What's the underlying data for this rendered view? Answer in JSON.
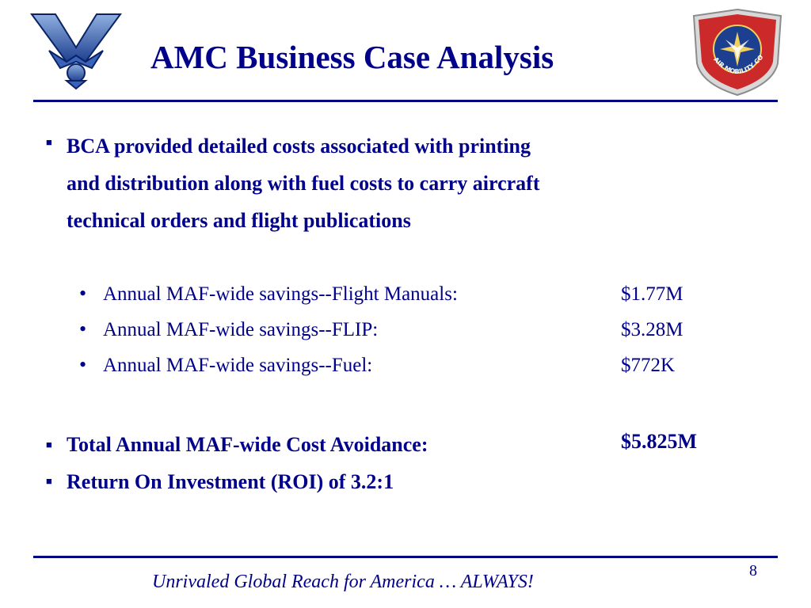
{
  "slide": {
    "title": "AMC Business Case Analysis",
    "main_bullet": {
      "lines": [
        "BCA provided detailed costs associated with printing",
        "and distribution along with fuel costs to carry aircraft",
        "technical orders and flight publications"
      ]
    },
    "savings": [
      {
        "label": "Annual MAF-wide savings--Flight Manuals:",
        "value": "$1.77M"
      },
      {
        "label": "Annual MAF-wide savings--FLIP:",
        "value": "$3.28M"
      },
      {
        "label": "Annual MAF-wide savings--Fuel:",
        "value": "$772K"
      }
    ],
    "total": {
      "label": "Total Annual MAF-wide Cost Avoidance:",
      "value": "$5.825M"
    },
    "roi": "Return On Investment (ROI) of 3.2:1",
    "seal_text": "AIR MOBILITY COMMAND",
    "footer": "Unrivaled Global Reach for America … ALWAYS!",
    "page_number": "8",
    "colors": {
      "accent": "#00008b",
      "rule": "#000080"
    },
    "icons": {
      "left": "air-force-symbol-icon",
      "right": "air-mobility-command-seal-icon"
    }
  }
}
